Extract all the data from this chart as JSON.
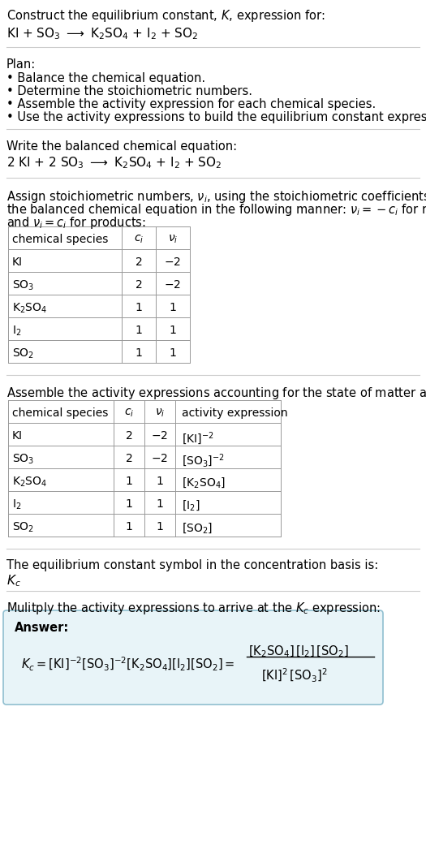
{
  "title_line1": "Construct the equilibrium constant, $K$, expression for:",
  "title_line2": "KI + SO$_3$ $\\longrightarrow$ K$_2$SO$_4$ + I$_2$ + SO$_2$",
  "plan_header": "Plan:",
  "plan_items": [
    "• Balance the chemical equation.",
    "• Determine the stoichiometric numbers.",
    "• Assemble the activity expression for each chemical species.",
    "• Use the activity expressions to build the equilibrium constant expression."
  ],
  "balanced_header": "Write the balanced chemical equation:",
  "balanced_eq": "2 KI + 2 SO$_3$ $\\longrightarrow$ K$_2$SO$_4$ + I$_2$ + SO$_2$",
  "stoich_intro1": "Assign stoichiometric numbers, $\\nu_i$, using the stoichiometric coefficients, $c_i$, from",
  "stoich_intro2": "the balanced chemical equation in the following manner: $\\nu_i = -c_i$ for reactants",
  "stoich_intro3": "and $\\nu_i = c_i$ for products:",
  "table1_headers": [
    "chemical species",
    "$c_i$",
    "$\\nu_i$"
  ],
  "table1_data": [
    [
      "KI",
      "2",
      "$-2$"
    ],
    [
      "SO$_3$",
      "2",
      "$-2$"
    ],
    [
      "K$_2$SO$_4$",
      "1",
      "1"
    ],
    [
      "I$_2$",
      "1",
      "1"
    ],
    [
      "SO$_2$",
      "1",
      "1"
    ]
  ],
  "activity_intro": "Assemble the activity expressions accounting for the state of matter and $\\nu_i$:",
  "table2_headers": [
    "chemical species",
    "$c_i$",
    "$\\nu_i$",
    "activity expression"
  ],
  "table2_data": [
    [
      "KI",
      "2",
      "$-2$",
      "[KI]$^{-2}$"
    ],
    [
      "SO$_3$",
      "2",
      "$-2$",
      "[SO$_3$]$^{-2}$"
    ],
    [
      "K$_2$SO$_4$",
      "1",
      "1",
      "[K$_2$SO$_4$]"
    ],
    [
      "I$_2$",
      "1",
      "1",
      "[I$_2$]"
    ],
    [
      "SO$_2$",
      "1",
      "1",
      "[SO$_2$]"
    ]
  ],
  "kc_text": "The equilibrium constant symbol in the concentration basis is:",
  "kc_symbol": "$K_c$",
  "multiply_text": "Mulitply the activity expressions to arrive at the $K_c$ expression:",
  "answer_box_color": "#e8f4f8",
  "answer_box_border": "#90bfd0",
  "answer_label": "Answer:",
  "bg_color": "#ffffff",
  "text_color": "#000000",
  "table_line_color": "#999999",
  "separator_color": "#cccccc"
}
